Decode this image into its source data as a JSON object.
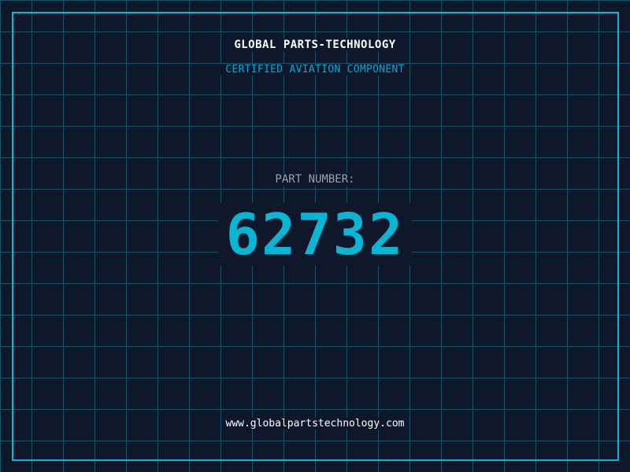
{
  "header": {
    "company": "GLOBAL PARTS-TECHNOLOGY",
    "subtitle": "CERTIFIED AVIATION COMPONENT"
  },
  "part": {
    "label": "PART NUMBER:",
    "number": "62732"
  },
  "footer": {
    "url": "www.globalpartstechnology.com"
  },
  "colors": {
    "background": "#0f172a",
    "accent": "#06b6d4",
    "grid": "#155e75"
  }
}
